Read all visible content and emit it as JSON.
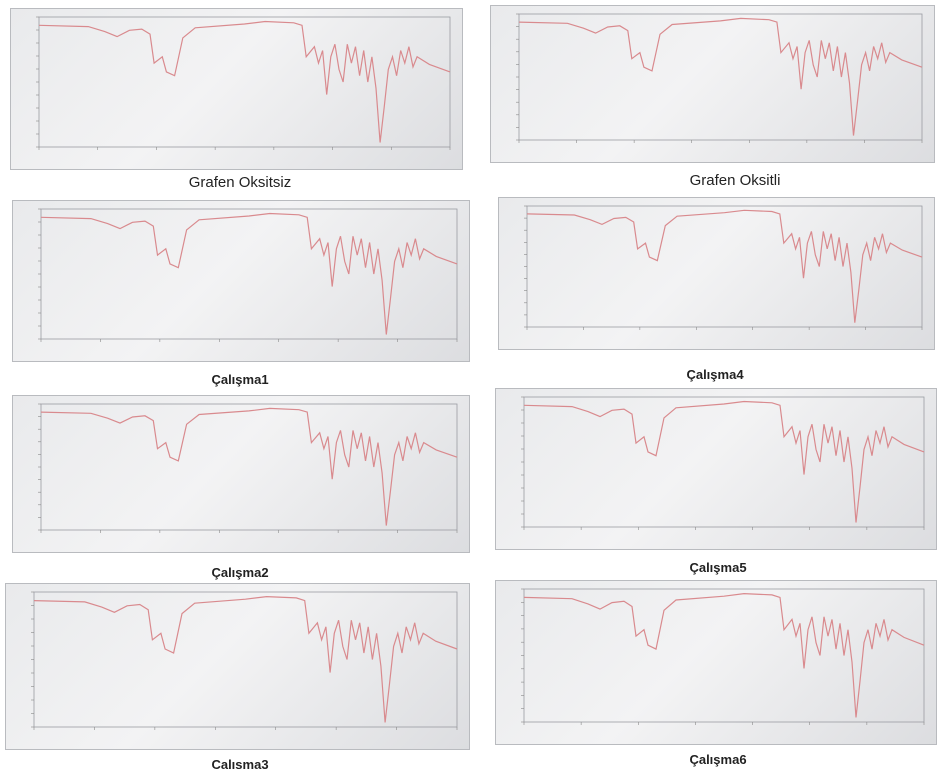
{
  "panels": [
    {
      "caption": "Grafen Oksitsiz"
    },
    {
      "caption": "Grafen Oksitli"
    },
    {
      "caption": "Çalışma1"
    },
    {
      "caption": "Çalışma4"
    },
    {
      "caption": "Çalışma2"
    },
    {
      "caption": "Çalışma5"
    },
    {
      "caption": "Calısma3"
    },
    {
      "caption": "Çalışma6"
    }
  ]
}
